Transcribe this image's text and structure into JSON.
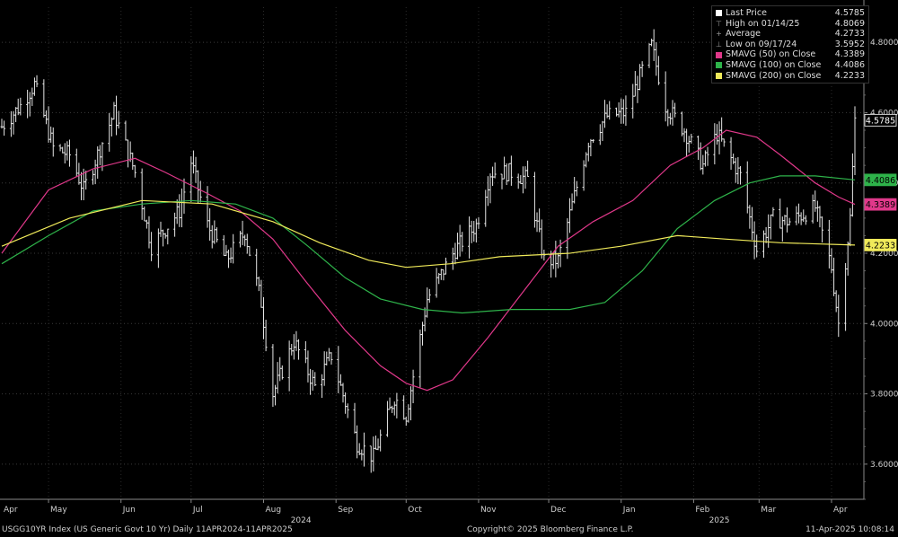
{
  "chart_data": {
    "type": "bar",
    "subtype": "ohlc",
    "ylim": [
      3.5,
      4.9
    ],
    "yticks": [
      "3.6000",
      "3.8000",
      "4.0000",
      "4.2000",
      "4.4000",
      "4.6000",
      "4.8000"
    ],
    "xlim": [
      "2024-04-11",
      "2025-04-11"
    ],
    "months": [
      {
        "label": "Apr",
        "date": "2024-04-01"
      },
      {
        "label": "May",
        "date": "2024-05-01"
      },
      {
        "label": "Jun",
        "date": "2024-06-01"
      },
      {
        "label": "Jul",
        "date": "2024-07-01"
      },
      {
        "label": "Aug",
        "date": "2024-08-01"
      },
      {
        "label": "Sep",
        "date": "2024-09-01"
      },
      {
        "label": "Oct",
        "date": "2024-10-01"
      },
      {
        "label": "Nov",
        "date": "2024-11-01"
      },
      {
        "label": "Dec",
        "date": "2024-12-01"
      },
      {
        "label": "Jan",
        "date": "2025-01-01"
      },
      {
        "label": "Feb",
        "date": "2025-02-01"
      },
      {
        "label": "Mar",
        "date": "2025-03-01"
      },
      {
        "label": "Apr",
        "date": "2025-04-01"
      }
    ],
    "years": [
      {
        "label": "2024",
        "date": "2024-08-17"
      },
      {
        "label": "2025",
        "date": "2025-02-12"
      }
    ],
    "price_anchors": [
      [
        "2024-04-11",
        4.56
      ],
      [
        "2024-04-19",
        4.62
      ],
      [
        "2024-04-25",
        4.68
      ],
      [
        "2024-05-03",
        4.5
      ],
      [
        "2024-05-10",
        4.48
      ],
      [
        "2024-05-16",
        4.38
      ],
      [
        "2024-05-29",
        4.6
      ],
      [
        "2024-06-07",
        4.43
      ],
      [
        "2024-06-14",
        4.22
      ],
      [
        "2024-06-26",
        4.32
      ],
      [
        "2024-07-01",
        4.46
      ],
      [
        "2024-07-08",
        4.28
      ],
      [
        "2024-07-16",
        4.18
      ],
      [
        "2024-07-24",
        4.26
      ],
      [
        "2024-07-31",
        4.06
      ],
      [
        "2024-08-05",
        3.8
      ],
      [
        "2024-08-14",
        3.95
      ],
      [
        "2024-08-23",
        3.82
      ],
      [
        "2024-08-30",
        3.91
      ],
      [
        "2024-09-10",
        3.66
      ],
      [
        "2024-09-17",
        3.62
      ],
      [
        "2024-09-26",
        3.79
      ],
      [
        "2024-10-01",
        3.74
      ],
      [
        "2024-10-10",
        4.07
      ],
      [
        "2024-10-22",
        4.21
      ],
      [
        "2024-10-31",
        4.28
      ],
      [
        "2024-11-06",
        4.43
      ],
      [
        "2024-11-15",
        4.43
      ],
      [
        "2024-11-22",
        4.41
      ],
      [
        "2024-11-29",
        4.18
      ],
      [
        "2024-12-05",
        4.18
      ],
      [
        "2024-12-18",
        4.52
      ],
      [
        "2024-12-26",
        4.59
      ],
      [
        "2025-01-03",
        4.6
      ],
      [
        "2025-01-14",
        4.79
      ],
      [
        "2025-01-20",
        4.62
      ],
      [
        "2025-01-28",
        4.55
      ],
      [
        "2025-02-05",
        4.45
      ],
      [
        "2025-02-11",
        4.54
      ],
      [
        "2025-02-21",
        4.42
      ],
      [
        "2025-02-28",
        4.21
      ],
      [
        "2025-03-07",
        4.3
      ],
      [
        "2025-03-14",
        4.29
      ],
      [
        "2025-03-25",
        4.33
      ],
      [
        "2025-04-01",
        4.16
      ],
      [
        "2025-04-04",
        4.0
      ],
      [
        "2025-04-07",
        4.18
      ],
      [
        "2025-04-09",
        4.3
      ],
      [
        "2025-04-11",
        4.5785
      ]
    ],
    "series": [
      {
        "name": "SMAVG (50) on Close",
        "color": "#e0388a",
        "points": [
          [
            "2024-04-11",
            4.2
          ],
          [
            "2024-05-01",
            4.38
          ],
          [
            "2024-05-20",
            4.44
          ],
          [
            "2024-06-07",
            4.47
          ],
          [
            "2024-06-20",
            4.43
          ],
          [
            "2024-07-08",
            4.37
          ],
          [
            "2024-07-22",
            4.32
          ],
          [
            "2024-08-05",
            4.24
          ],
          [
            "2024-08-19",
            4.12
          ],
          [
            "2024-09-05",
            3.98
          ],
          [
            "2024-09-20",
            3.88
          ],
          [
            "2024-10-01",
            3.83
          ],
          [
            "2024-10-10",
            3.81
          ],
          [
            "2024-10-21",
            3.84
          ],
          [
            "2024-11-05",
            3.96
          ],
          [
            "2024-11-20",
            4.09
          ],
          [
            "2024-12-05",
            4.22
          ],
          [
            "2024-12-20",
            4.29
          ],
          [
            "2025-01-06",
            4.35
          ],
          [
            "2025-01-22",
            4.45
          ],
          [
            "2025-02-05",
            4.5
          ],
          [
            "2025-02-15",
            4.55
          ],
          [
            "2025-02-28",
            4.53
          ],
          [
            "2025-03-10",
            4.48
          ],
          [
            "2025-03-25",
            4.4
          ],
          [
            "2025-04-04",
            4.36
          ],
          [
            "2025-04-11",
            4.3389
          ]
        ]
      },
      {
        "name": "SMAVG (100) on Close",
        "color": "#2eb34a",
        "points": [
          [
            "2024-04-11",
            4.17
          ],
          [
            "2024-05-01",
            4.25
          ],
          [
            "2024-05-20",
            4.32
          ],
          [
            "2024-06-10",
            4.34
          ],
          [
            "2024-07-01",
            4.35
          ],
          [
            "2024-07-20",
            4.34
          ],
          [
            "2024-08-05",
            4.3
          ],
          [
            "2024-08-20",
            4.22
          ],
          [
            "2024-09-05",
            4.13
          ],
          [
            "2024-09-20",
            4.07
          ],
          [
            "2024-10-08",
            4.04
          ],
          [
            "2024-10-25",
            4.03
          ],
          [
            "2024-11-15",
            4.04
          ],
          [
            "2024-12-10",
            4.04
          ],
          [
            "2024-12-25",
            4.06
          ],
          [
            "2025-01-10",
            4.15
          ],
          [
            "2025-01-25",
            4.27
          ],
          [
            "2025-02-10",
            4.35
          ],
          [
            "2025-02-25",
            4.4
          ],
          [
            "2025-03-10",
            4.42
          ],
          [
            "2025-03-25",
            4.42
          ],
          [
            "2025-04-11",
            4.4086
          ]
        ]
      },
      {
        "name": "SMAVG (200) on Close",
        "color": "#f0ea5a",
        "points": [
          [
            "2024-04-11",
            4.22
          ],
          [
            "2024-05-10",
            4.3
          ],
          [
            "2024-06-10",
            4.35
          ],
          [
            "2024-07-10",
            4.34
          ],
          [
            "2024-08-05",
            4.29
          ],
          [
            "2024-08-25",
            4.23
          ],
          [
            "2024-09-15",
            4.18
          ],
          [
            "2024-10-01",
            4.16
          ],
          [
            "2024-10-20",
            4.17
          ],
          [
            "2024-11-10",
            4.19
          ],
          [
            "2024-12-10",
            4.2
          ],
          [
            "2025-01-01",
            4.22
          ],
          [
            "2025-01-25",
            4.25
          ],
          [
            "2025-02-15",
            4.24
          ],
          [
            "2025-03-10",
            4.23
          ],
          [
            "2025-04-11",
            4.2233
          ]
        ]
      }
    ],
    "right_labels": [
      {
        "text": "4.5785",
        "value": 4.5785,
        "bg": "#000000",
        "fg": "#ffffff",
        "border": "#ffffff"
      },
      {
        "text": "4.4086",
        "value": 4.4086,
        "bg": "#2eb34a",
        "fg": "#000000",
        "border": "#2eb34a"
      },
      {
        "text": "4.3389",
        "value": 4.3389,
        "bg": "#e0388a",
        "fg": "#000000",
        "border": "#e0388a"
      },
      {
        "text": "4.2233",
        "value": 4.2233,
        "bg": "#f0ea5a",
        "fg": "#000000",
        "border": "#f0ea5a"
      }
    ]
  },
  "legend": {
    "rows": [
      {
        "kind": "box",
        "color": "#ffffff",
        "label": "Last Price",
        "value": "4.5785"
      },
      {
        "kind": "glyph",
        "glyph": "⊤",
        "label": "High on 01/14/25",
        "value": "4.8069"
      },
      {
        "kind": "glyph",
        "glyph": "+",
        "label": "Average",
        "value": "4.2733"
      },
      {
        "kind": "glyph",
        "glyph": "⊥",
        "label": "Low on 09/17/24",
        "value": "3.5952"
      },
      {
        "kind": "box",
        "color": "#e0388a",
        "label": "SMAVG (50)  on Close",
        "value": "4.3389"
      },
      {
        "kind": "box",
        "color": "#2eb34a",
        "label": "SMAVG (100)  on Close",
        "value": "4.4086"
      },
      {
        "kind": "box",
        "color": "#f0ea5a",
        "label": "SMAVG (200)  on Close",
        "value": "4.2233"
      }
    ]
  },
  "footer": {
    "left": "USGG10YR Index (US Generic Govt 10 Yr)  Daily 11APR2024-11APR2025",
    "center": "Copyright© 2025 Bloomberg Finance L.P.",
    "right": "11-Apr-2025 10:08:14"
  }
}
